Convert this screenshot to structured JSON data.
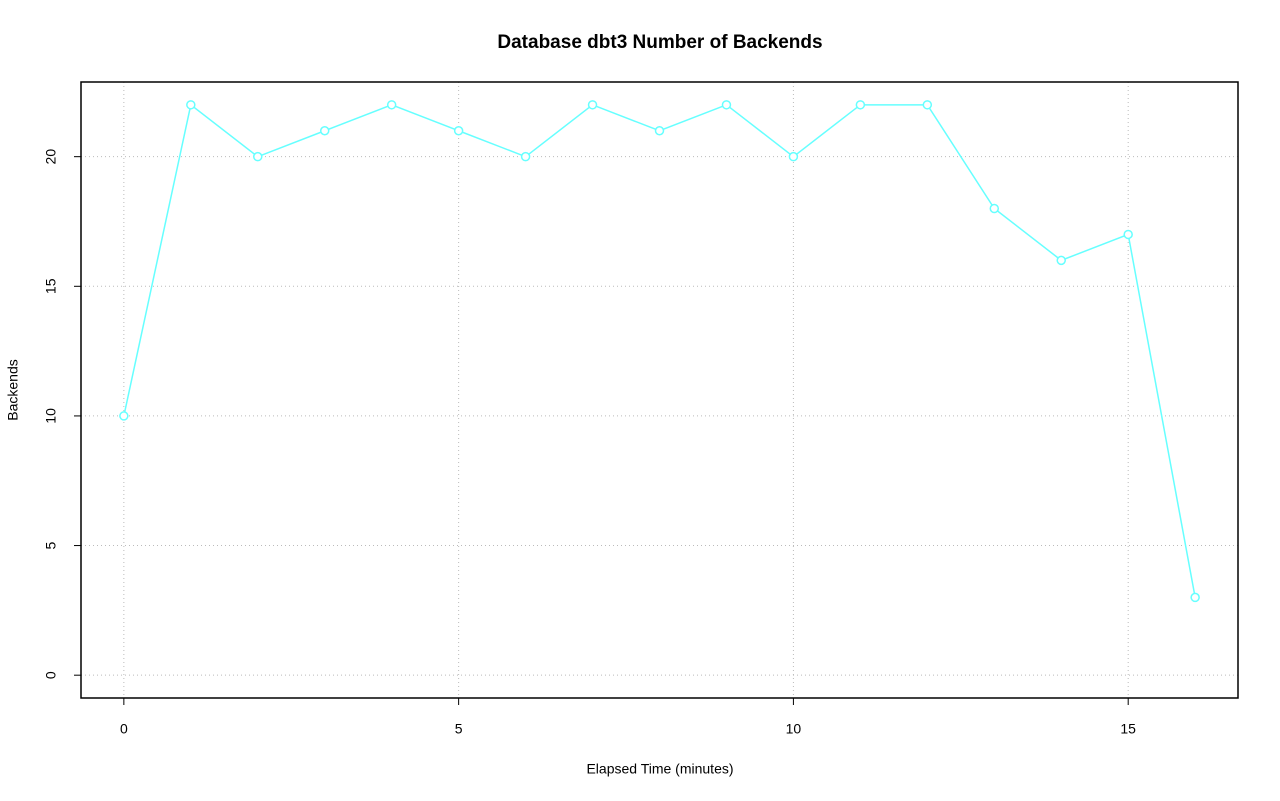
{
  "chart_data": {
    "type": "line",
    "title": "Database dbt3 Number of Backends",
    "x_label": "Elapsed Time (minutes)",
    "y_label": "Backends",
    "x": [
      0,
      1,
      2,
      3,
      4,
      5,
      6,
      7,
      8,
      9,
      10,
      11,
      12,
      13,
      14,
      15,
      16
    ],
    "values": [
      10,
      22,
      20,
      21,
      22,
      21,
      20,
      22,
      21,
      22,
      20,
      22,
      22,
      18,
      16,
      17,
      3
    ],
    "color": "#66ffff",
    "xlim": [
      -0.64,
      16.64
    ],
    "xticks": [
      0,
      5,
      10,
      15
    ],
    "ylim": [
      -0.88,
      22.88
    ],
    "yticks": [
      0,
      5,
      10,
      15,
      20
    ],
    "grid": true
  }
}
